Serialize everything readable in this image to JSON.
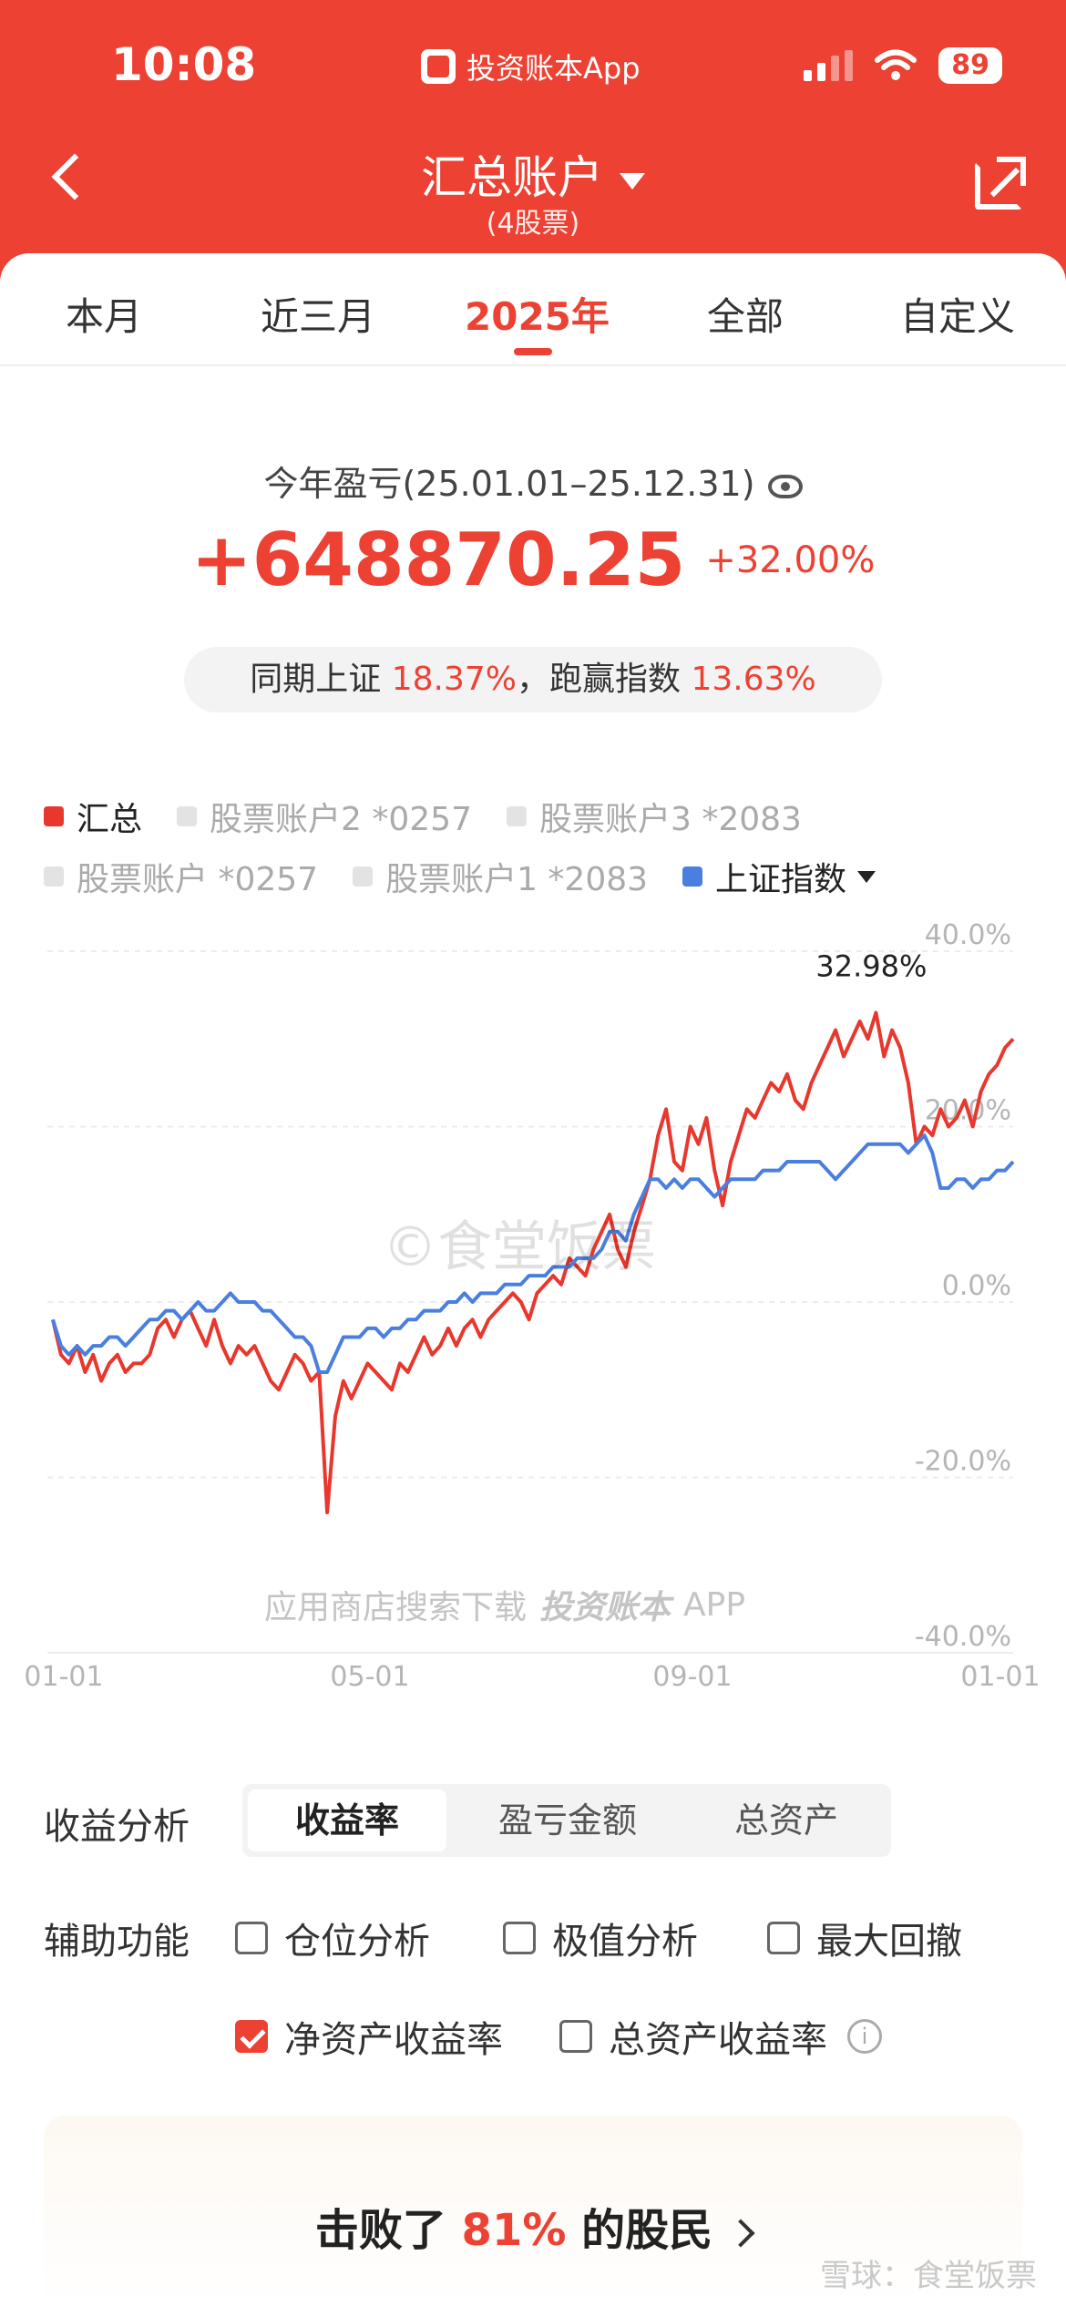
{
  "status_bar": {
    "time": "10:08",
    "app_name": "投资账本App",
    "battery": "89"
  },
  "nav": {
    "title": "汇总账户",
    "subtitle": "(4股票)"
  },
  "tabs": [
    {
      "label": "本月",
      "active": false
    },
    {
      "label": "近三月",
      "active": false
    },
    {
      "label": "2025年",
      "active": true
    },
    {
      "label": "全部",
      "active": false
    },
    {
      "label": "自定义",
      "active": false
    }
  ],
  "summary": {
    "label": "今年盈亏(25.01.01–25.12.31)",
    "value": "+648870.25",
    "percent": "+32.00%",
    "compare_prefix": "同期上证",
    "compare_index": "18.37%",
    "compare_mid": "，跑赢指数",
    "compare_beat": "13.63%"
  },
  "legend": {
    "row1": [
      {
        "label": "汇总",
        "on": true,
        "color": "#e8372d"
      },
      {
        "label": "股票账户2 *0257",
        "on": false,
        "color": "#e3e3e3"
      },
      {
        "label": "股票账户3 *2083",
        "on": false,
        "color": "#e3e3e3"
      }
    ],
    "row2": [
      {
        "label": "股票账户 *0257",
        "on": false,
        "color": "#e3e3e3"
      },
      {
        "label": "股票账户1 *2083",
        "on": false,
        "color": "#e3e3e3"
      },
      {
        "label": "上证指数",
        "on": true,
        "color": "#4a7fe0"
      }
    ]
  },
  "watermarks": {
    "main": "©食堂饭票",
    "download_prefix": "应用商店搜索下载",
    "download_brand": "投资账本",
    "download_suffix": "APP",
    "footer": "雪球：食堂饭票"
  },
  "chart_data": {
    "type": "line",
    "x_ticks": [
      "01-01",
      "05-01",
      "09-01",
      "01-01"
    ],
    "y_ticks": [
      "40.0%",
      "20.0%",
      "0.0%",
      "-20.0%",
      "-40.0%"
    ],
    "ylim": [
      -40,
      40
    ],
    "max_label": "32.98%",
    "grid": true,
    "series": [
      {
        "name": "汇总",
        "color": "#e8372d",
        "values": [
          -2,
          -6,
          -7,
          -5,
          -8,
          -6,
          -9,
          -7,
          -6,
          -8,
          -7,
          -7,
          -6,
          -3,
          -2,
          -4,
          -2,
          -1,
          -3,
          -5,
          -2,
          -5,
          -7,
          -5,
          -6,
          -5,
          -7,
          -9,
          -10,
          -8,
          -6,
          -7,
          -9,
          -8,
          -24,
          -13,
          -9,
          -11,
          -9,
          -7,
          -8,
          -9,
          -10,
          -7,
          -8,
          -6,
          -4,
          -6,
          -5,
          -3,
          -5,
          -3,
          -2,
          -4,
          -2,
          -1,
          0,
          1,
          0,
          -2,
          1,
          2,
          3,
          2,
          5,
          4,
          3,
          6,
          8,
          10,
          6,
          4,
          8,
          11,
          14,
          19,
          22,
          16,
          15,
          20,
          18,
          21,
          15,
          11,
          16,
          19,
          22,
          21,
          23,
          25,
          24,
          26,
          23,
          22,
          25,
          27,
          29,
          31,
          28,
          30,
          32,
          30,
          33,
          28,
          31,
          29,
          25,
          18,
          20,
          19,
          22,
          20,
          21,
          23,
          20,
          24,
          26,
          27,
          29,
          30
        ]
      },
      {
        "name": "上证指数",
        "color": "#4a7fe0",
        "values": [
          -2,
          -5,
          -6,
          -5,
          -6,
          -5,
          -5,
          -4,
          -4,
          -5,
          -4,
          -3,
          -2,
          -2,
          -1,
          -1,
          -2,
          -1,
          0,
          -1,
          -1,
          0,
          1,
          0,
          0,
          0,
          -1,
          -1,
          -2,
          -3,
          -4,
          -4,
          -5,
          -8,
          -8,
          -6,
          -4,
          -4,
          -4,
          -3,
          -3,
          -4,
          -3,
          -3,
          -2,
          -2,
          -1,
          -1,
          -1,
          0,
          0,
          1,
          0,
          1,
          1,
          1,
          2,
          2,
          2,
          3,
          3,
          3,
          4,
          4,
          4,
          5,
          5,
          5,
          6,
          8,
          8,
          7,
          10,
          12,
          14,
          14,
          13,
          14,
          13,
          14,
          14,
          13,
          12,
          13,
          14,
          14,
          14,
          14,
          15,
          15,
          15,
          16,
          16,
          16,
          16,
          16,
          15,
          14,
          15,
          16,
          17,
          18,
          18,
          18,
          18,
          18,
          17,
          18,
          19,
          17,
          13,
          13,
          14,
          14,
          13,
          14,
          14,
          15,
          15,
          16
        ]
      }
    ]
  },
  "analysis": {
    "label": "收益分析",
    "options": [
      {
        "label": "收益率",
        "active": true
      },
      {
        "label": "盈亏金额",
        "active": false
      },
      {
        "label": "总资产",
        "active": false
      }
    ]
  },
  "assist": {
    "label": "辅助功能",
    "checks_row1": [
      {
        "label": "仓位分析",
        "checked": false
      },
      {
        "label": "极值分析",
        "checked": false
      },
      {
        "label": "最大回撤",
        "checked": false
      }
    ],
    "checks_row2": [
      {
        "label": "净资产收益率",
        "checked": true
      },
      {
        "label": "总资产收益率",
        "checked": false
      }
    ]
  },
  "banner": {
    "prefix": "击败了",
    "percent": "81%",
    "suffix": "的股民"
  }
}
